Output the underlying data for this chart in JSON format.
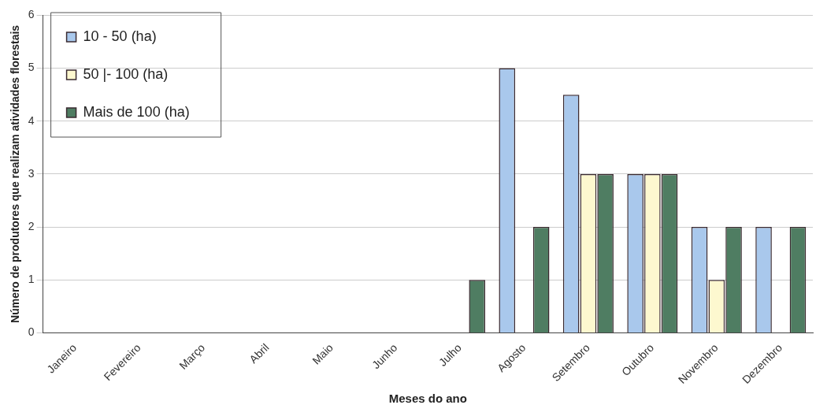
{
  "chart_data": {
    "type": "bar",
    "xlabel": "Meses do ano",
    "ylabel": "Número de produtores que realizam atividades florestais",
    "categories": [
      "Janeiro",
      "Fevereiro",
      "Março",
      "Abril",
      "Maio",
      "Junho",
      "Julho",
      "Agosto",
      "Setembro",
      "Outubro",
      "Novembro",
      "Dezembro"
    ],
    "series": [
      {
        "name": "10 - 50 (ha)",
        "color": "#a9c8ec",
        "values": [
          0,
          0,
          0,
          0,
          0,
          0,
          0,
          5,
          4.5,
          3,
          2,
          2
        ]
      },
      {
        "name": "50 |- 100 (ha)",
        "color": "#fdf8cf",
        "values": [
          0,
          0,
          0,
          0,
          0,
          0,
          0,
          0,
          3,
          3,
          1,
          0
        ]
      },
      {
        "name": "Mais de 100 (ha)",
        "color": "#4f7d62",
        "values": [
          0,
          0,
          0,
          0,
          0,
          0,
          1,
          2,
          3,
          3,
          2,
          2
        ]
      }
    ],
    "ylim": [
      0,
      6
    ],
    "yticks": [
      0,
      1,
      2,
      3,
      4,
      5,
      6
    ],
    "grid": "y",
    "legend": "top left"
  }
}
